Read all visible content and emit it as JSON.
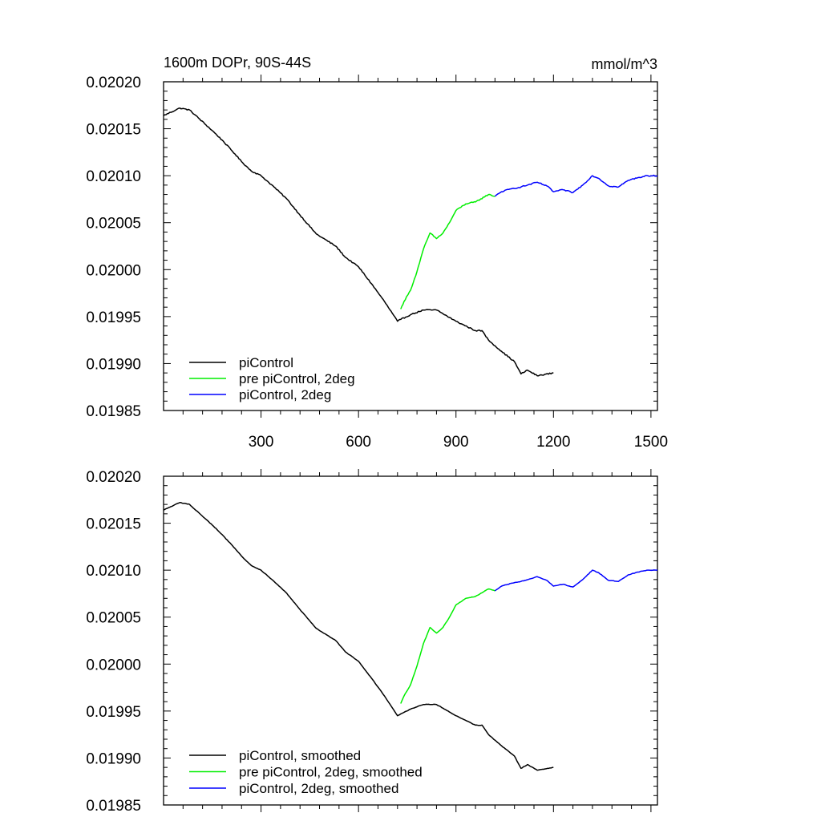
{
  "chart_data": [
    {
      "type": "line",
      "title": "1600m DOPr, 90S-44S",
      "units": "mmol/m^3",
      "ylim": [
        0.01985,
        0.0202
      ],
      "xlim": [
        0,
        1520
      ],
      "x_ticks": [
        300,
        600,
        900,
        1200,
        1500
      ],
      "y_ticks": [
        "0.01985",
        "0.01990",
        "0.01995",
        "0.02000",
        "0.02005",
        "0.02010",
        "0.02015",
        "0.02020"
      ],
      "legend": "bottom-left",
      "series": [
        {
          "name": "piControl",
          "color": "#000000",
          "x": [
            0,
            50,
            80,
            150,
            180,
            220,
            240,
            270,
            300,
            340,
            380,
            420,
            470,
            530,
            560,
            600,
            640,
            680,
            720,
            730,
            760,
            800,
            840,
            860,
            900,
            960,
            980,
            1000,
            1040,
            1080,
            1100,
            1120,
            1150,
            1200
          ],
          "values": [
            0.020164,
            0.020172,
            0.02017,
            0.020148,
            0.020138,
            0.020123,
            0.020115,
            0.020105,
            0.0201,
            0.020088,
            0.020075,
            0.020058,
            0.020038,
            0.020025,
            0.020013,
            0.020003,
            0.019985,
            0.019966,
            0.019945,
            0.019947,
            0.019952,
            0.019957,
            0.019957,
            0.019953,
            0.019945,
            0.019935,
            0.019935,
            0.019925,
            0.019913,
            0.019902,
            0.019889,
            0.019893,
            0.019887,
            0.01989
          ]
        },
        {
          "name": "pre piControl, 2deg",
          "color": "#00ee00",
          "x": [
            730,
            740,
            760,
            780,
            800,
            820,
            840,
            860,
            880,
            900,
            930,
            960,
            1000,
            1020
          ],
          "values": [
            0.019958,
            0.019966,
            0.019978,
            0.019998,
            0.020022,
            0.020039,
            0.020033,
            0.020039,
            0.02005,
            0.020063,
            0.02007,
            0.020072,
            0.02008,
            0.020078
          ]
        },
        {
          "name": "piControl, 2deg",
          "color": "#0000ff",
          "x": [
            1020,
            1040,
            1070,
            1100,
            1150,
            1180,
            1200,
            1230,
            1260,
            1290,
            1320,
            1340,
            1370,
            1400,
            1430,
            1460,
            1490,
            1520
          ],
          "values": [
            0.020078,
            0.020083,
            0.020086,
            0.020088,
            0.020093,
            0.020089,
            0.020083,
            0.020085,
            0.020082,
            0.02009,
            0.0201,
            0.020097,
            0.020089,
            0.020088,
            0.020095,
            0.020098,
            0.0201,
            0.0201
          ]
        }
      ]
    },
    {
      "type": "line",
      "ylim": [
        0.01985,
        0.0202
      ],
      "xlim": [
        0,
        1520
      ],
      "y_ticks": [
        "0.01985",
        "0.01990",
        "0.01995",
        "0.02000",
        "0.02005",
        "0.02010",
        "0.02015",
        "0.02020"
      ],
      "legend": "bottom-left",
      "series": [
        {
          "name": "piControl, smoothed",
          "color": "#000000",
          "x": [
            0,
            50,
            80,
            150,
            180,
            220,
            240,
            270,
            300,
            340,
            380,
            420,
            470,
            530,
            560,
            600,
            640,
            680,
            720,
            730,
            760,
            800,
            840,
            860,
            900,
            960,
            980,
            1000,
            1040,
            1080,
            1100,
            1120,
            1150,
            1200
          ],
          "values": [
            0.020164,
            0.020172,
            0.02017,
            0.020148,
            0.020138,
            0.020123,
            0.020115,
            0.020105,
            0.0201,
            0.020088,
            0.020075,
            0.020058,
            0.020038,
            0.020025,
            0.020013,
            0.020003,
            0.019985,
            0.019966,
            0.019945,
            0.019947,
            0.019952,
            0.019957,
            0.019957,
            0.019953,
            0.019945,
            0.019935,
            0.019935,
            0.019925,
            0.019913,
            0.019902,
            0.019889,
            0.019893,
            0.019887,
            0.01989
          ]
        },
        {
          "name": "pre piControl, 2deg, smoothed",
          "color": "#00ee00",
          "x": [
            730,
            740,
            760,
            780,
            800,
            820,
            840,
            860,
            880,
            900,
            930,
            960,
            1000,
            1020
          ],
          "values": [
            0.019958,
            0.019966,
            0.019978,
            0.019998,
            0.020022,
            0.020039,
            0.020033,
            0.020039,
            0.02005,
            0.020063,
            0.02007,
            0.020072,
            0.02008,
            0.020078
          ]
        },
        {
          "name": "piControl, 2deg, smoothed",
          "color": "#0000ff",
          "x": [
            1020,
            1040,
            1070,
            1100,
            1150,
            1180,
            1200,
            1230,
            1260,
            1290,
            1320,
            1340,
            1370,
            1400,
            1430,
            1460,
            1490,
            1520
          ],
          "values": [
            0.020078,
            0.020083,
            0.020086,
            0.020088,
            0.020093,
            0.020089,
            0.020083,
            0.020085,
            0.020082,
            0.02009,
            0.0201,
            0.020097,
            0.020089,
            0.020088,
            0.020095,
            0.020098,
            0.0201,
            0.0201
          ]
        }
      ]
    }
  ]
}
